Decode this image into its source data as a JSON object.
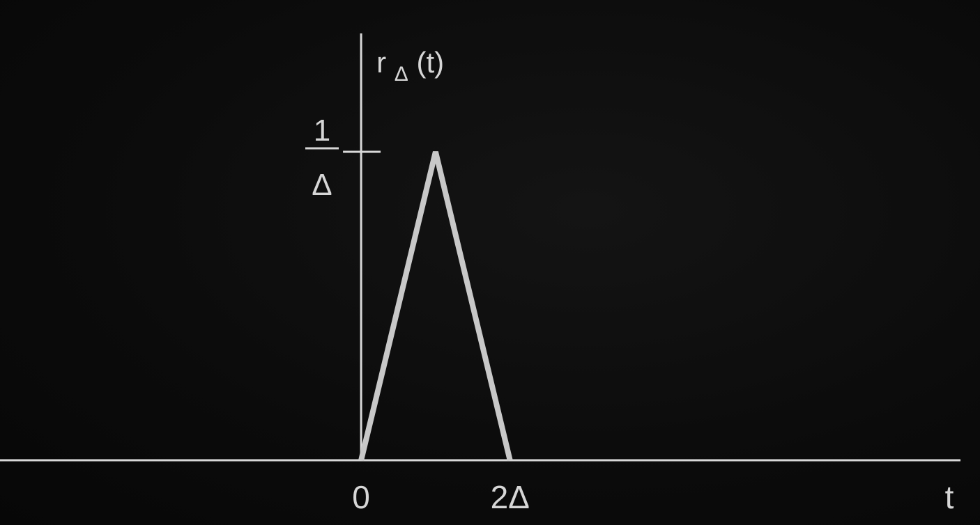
{
  "chart_data": {
    "type": "line",
    "function_label": {
      "base": "r",
      "subscript": "Δ",
      "argument": "(t)"
    },
    "xlabel": "t",
    "y_tick": {
      "numerator": "1",
      "denominator": "Δ",
      "value": 1
    },
    "x_ticks": [
      {
        "label": "0",
        "value": 0
      },
      {
        "label": "2Δ",
        "value": 2
      }
    ],
    "series": [
      {
        "x": [
          0,
          1,
          2
        ],
        "y": [
          0,
          1,
          0
        ]
      }
    ],
    "xlim": [
      -4.85,
      8.05
    ],
    "ylim": [
      0,
      1.25
    ],
    "grid": false,
    "colors": {
      "background": "#0a0a0a",
      "axis": "#d8d8d8",
      "curve": "#c8c8c8",
      "text": "#d6d6d6"
    }
  }
}
